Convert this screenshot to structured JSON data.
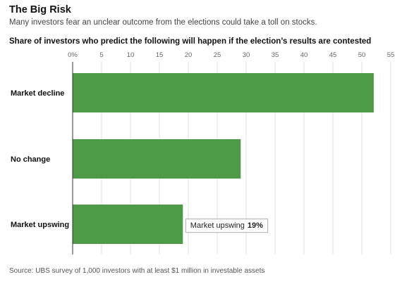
{
  "header": {
    "title": "The Big Risk",
    "subtitle": "Many investors fear an unclear outcome from the elections could take a toll on stocks."
  },
  "footer": {
    "source": "Source: UBS survey of 1,000 investors with at least $1 million in investable assets"
  },
  "tooltip": {
    "label": "Market upswing",
    "value": "19%"
  },
  "colors": {
    "bar": "#4f9a46",
    "grid": "#e2e2e2"
  },
  "chart_data": {
    "type": "bar",
    "orientation": "horizontal",
    "title": "Share of investors who predict the following will happen if the election’s results are contested",
    "categories": [
      "Market decline",
      "No change",
      "Market upswing"
    ],
    "values": [
      52,
      29,
      19
    ],
    "xlim": [
      0,
      55
    ],
    "xticks": [
      0,
      5,
      10,
      15,
      20,
      25,
      30,
      35,
      40,
      45,
      50,
      55
    ],
    "xtick_labels": [
      "0%",
      "5",
      "10",
      "15",
      "20",
      "25",
      "30",
      "35",
      "40",
      "45",
      "50",
      "55"
    ],
    "grid": true
  }
}
